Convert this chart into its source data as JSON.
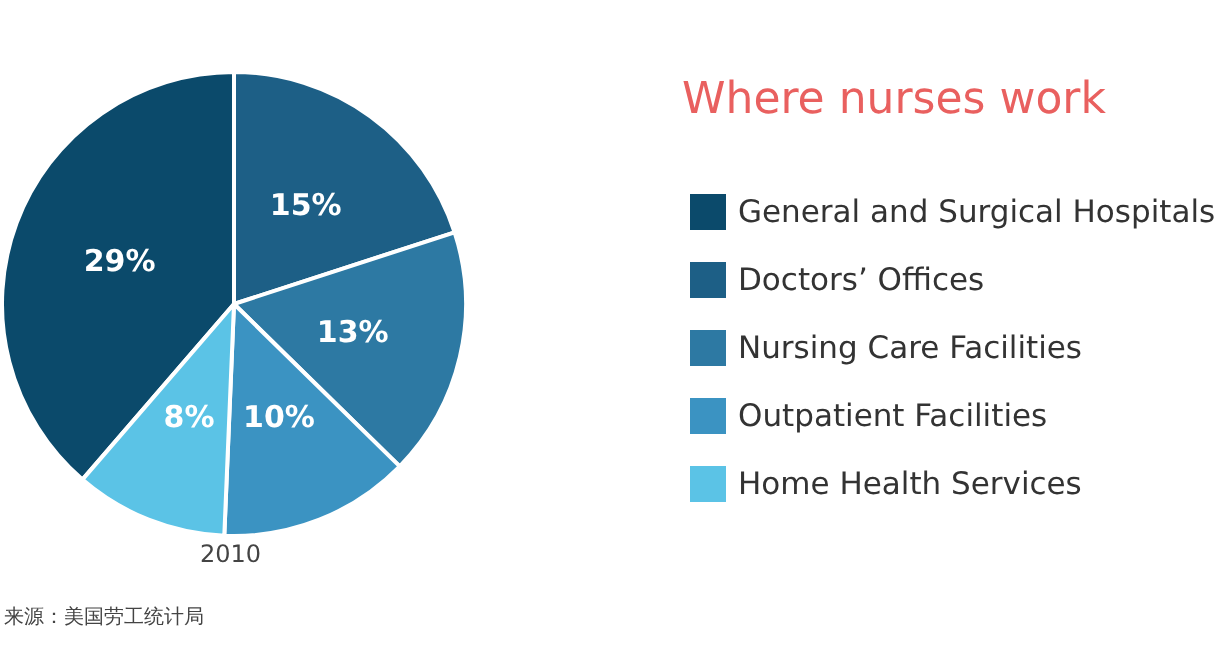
{
  "chart_data": {
    "type": "pie",
    "title": "Where nurses work",
    "categories": [
      "General and Surgical Hospitals",
      "Doctors’ Offices",
      "Nursing Care Facilities",
      "Outpatient Facilities",
      "Home Health Services"
    ],
    "values": [
      29,
      15,
      13,
      10,
      8
    ],
    "value_labels": [
      "29%",
      "15%",
      "13%",
      "10%",
      "8%"
    ],
    "colors": [
      "#0b4a6b",
      "#1d5f86",
      "#2d79a3",
      "#3b93c2",
      "#5bc3e6"
    ],
    "legend": "right",
    "annotations": [
      "2010",
      "来源：美国劳工统计局"
    ]
  }
}
